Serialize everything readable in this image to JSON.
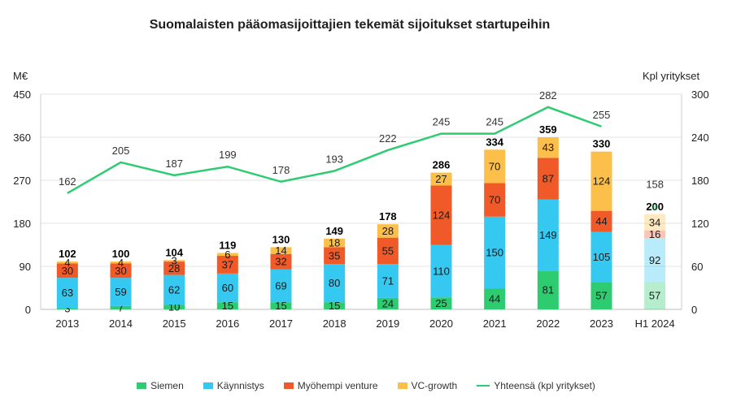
{
  "chart_data": {
    "type": "bar",
    "title": "Suomalaisten pääomasijoittajien tekemät sijoitukset startupeihin",
    "ylabel": "M€",
    "y2label": "Kpl yritykset",
    "ylim": [
      0,
      450
    ],
    "y2lim": [
      0,
      300
    ],
    "yticks": [
      0,
      90,
      180,
      270,
      360,
      450
    ],
    "y2ticks": [
      0,
      60,
      120,
      180,
      240,
      300
    ],
    "categories": [
      "2013",
      "2014",
      "2015",
      "2016",
      "2017",
      "2018",
      "2019",
      "2020",
      "2021",
      "2022",
      "2023",
      "H1 2024"
    ],
    "series": [
      {
        "name": "Siemen",
        "color": "#2ecc71",
        "values": [
          3,
          7,
          10,
          15,
          15,
          15,
          24,
          25,
          44,
          81,
          57,
          57
        ]
      },
      {
        "name": "Käynnistys",
        "color": "#35c8f0",
        "values": [
          63,
          59,
          62,
          60,
          69,
          80,
          71,
          110,
          150,
          149,
          105,
          92
        ]
      },
      {
        "name": "Myöhempi venture",
        "color": "#f05a28",
        "values": [
          30,
          30,
          28,
          37,
          32,
          35,
          55,
          124,
          70,
          87,
          44,
          16
        ]
      },
      {
        "name": "VC-growth",
        "color": "#fbbf4a",
        "values": [
          4,
          4,
          3,
          6,
          14,
          18,
          28,
          27,
          70,
          43,
          124,
          34
        ]
      }
    ],
    "totals": [
      102,
      100,
      104,
      119,
      130,
      149,
      178,
      286,
      334,
      359,
      330,
      200
    ],
    "line": {
      "name": "Yhteensä (kpl yritykset)",
      "color": "#2ecc71",
      "values": [
        162,
        205,
        187,
        199,
        178,
        193,
        222,
        245,
        245,
        282,
        255,
        158
      ]
    },
    "highlight_last": true,
    "legend_position": "bottom"
  }
}
